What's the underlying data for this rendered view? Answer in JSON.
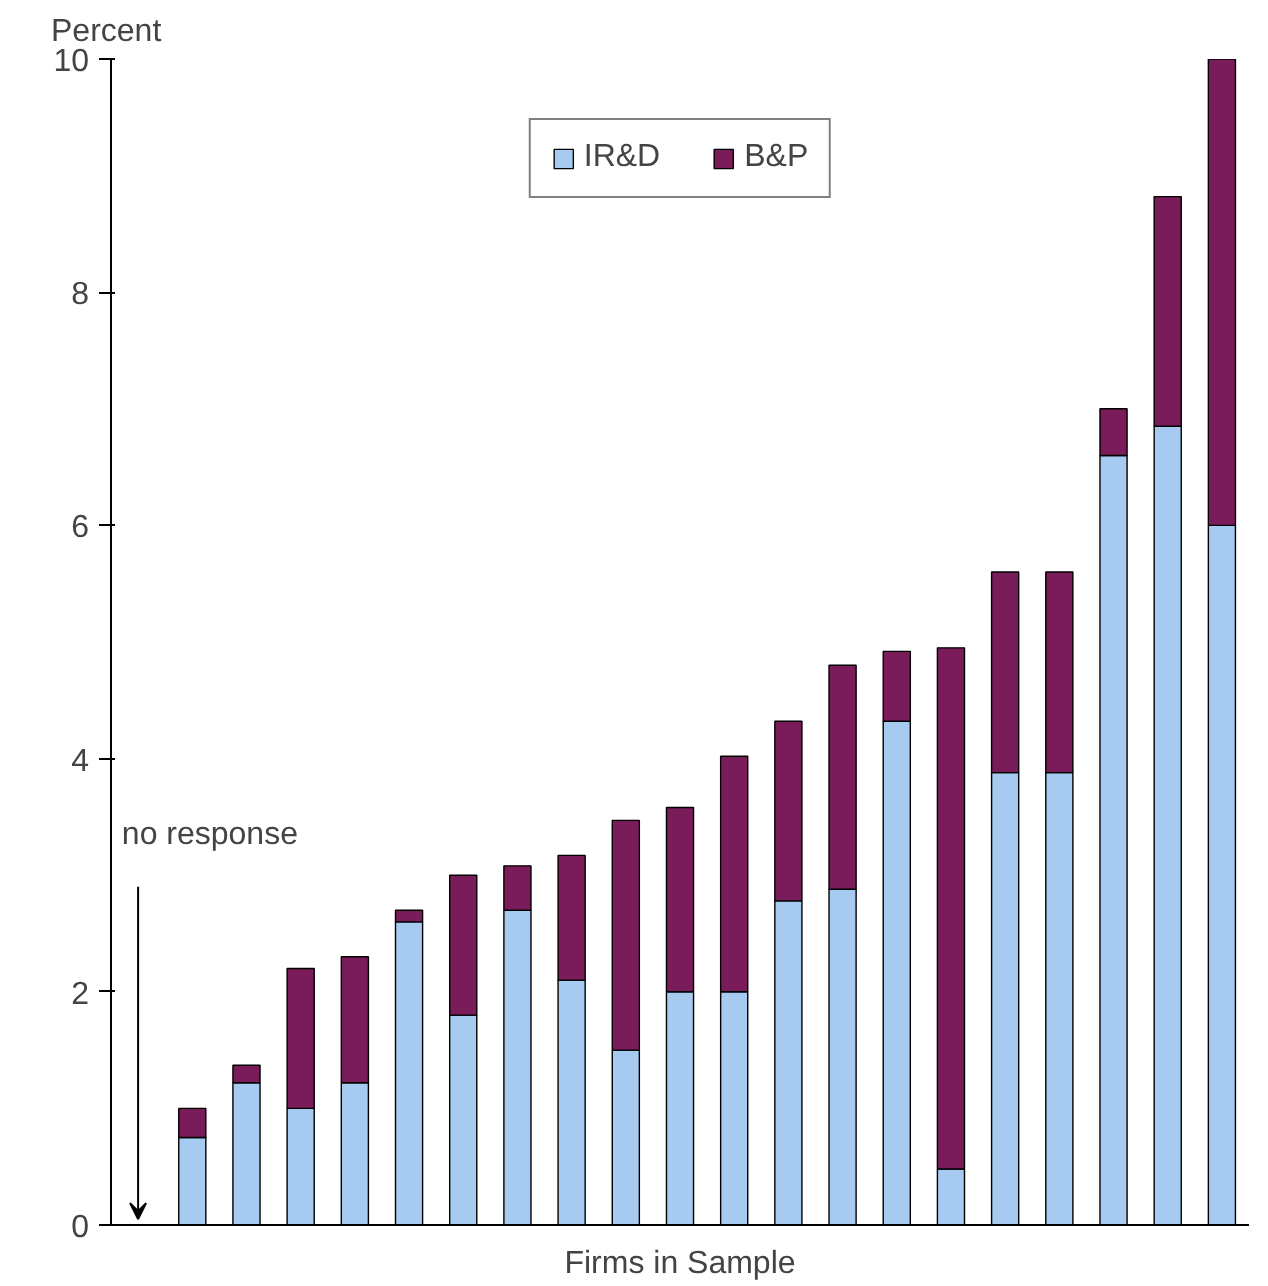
{
  "chart_data": {
    "type": "bar",
    "stacked": true,
    "xlabel": "Firms in Sample",
    "ylabel": "Percent",
    "categories": [
      null,
      null,
      null,
      null,
      null,
      null,
      null,
      null,
      null,
      null,
      null,
      null,
      null,
      null,
      null,
      null,
      null,
      null,
      null,
      null,
      null
    ],
    "series": [
      {
        "name": "IR&D",
        "color": "#a6caf0",
        "values": [
          null,
          0.75,
          1.22,
          1.0,
          1.22,
          2.6,
          1.8,
          2.7,
          2.1,
          1.5,
          2.0,
          2.0,
          2.78,
          2.88,
          4.32,
          0.48,
          3.88,
          3.88,
          6.6,
          6.85,
          6.0
        ]
      },
      {
        "name": "B&P",
        "color": "#7b1c5a",
        "values": [
          null,
          0.25,
          0.15,
          1.2,
          1.08,
          0.1,
          1.2,
          0.38,
          1.07,
          1.97,
          1.58,
          2.02,
          1.54,
          1.92,
          0.6,
          4.47,
          1.72,
          1.72,
          0.4,
          1.97,
          4.0
        ]
      }
    ],
    "ylim": [
      0,
      10
    ],
    "yticks": [
      0,
      2,
      4,
      6,
      8,
      10
    ],
    "grid": false,
    "legend": "top",
    "annotations": [
      "no response"
    ]
  }
}
